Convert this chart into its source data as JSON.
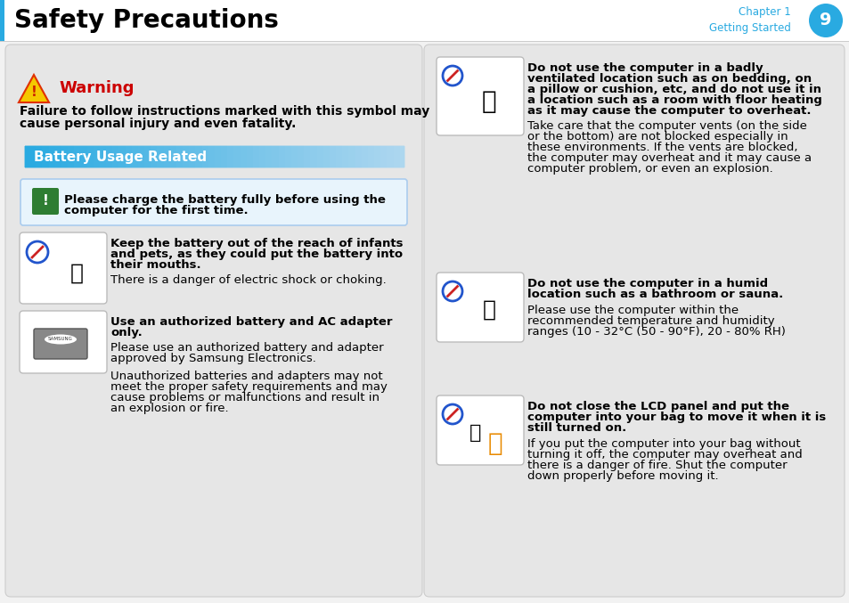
{
  "bg_color": "#f2f2f2",
  "header_bg": "#ffffff",
  "header_title": "Safety Precautions",
  "header_chapter": "Chapter 1",
  "header_getting_started": "Getting Started",
  "header_page": "9",
  "circle_color": "#29aae1",
  "warning_color": "#cc0000",
  "warning_text": "Warning",
  "warning_line1": "Failure to follow instructions marked with this symbol may",
  "warning_line2": "cause personal injury and even fatality.",
  "battery_header": "Battery Usage Related",
  "battery_bg": "#29aae1",
  "info_icon_bg": "#2e7d32",
  "info_text_line1": "Please charge the battery fully before using the",
  "info_text_line2": "computer for the first time.",
  "left_panel_bg": "#e6e6e6",
  "right_panel_bg": "#e6e6e6",
  "item1_bold1": "Keep the battery out of the reach of infants",
  "item1_bold2": "and pets, as they could put the battery into",
  "item1_bold3": "their mouths.",
  "item1_normal": "There is a danger of electric shock or choking.",
  "item2_bold1": "Use an authorized battery and AC adapter",
  "item2_bold2": "only.",
  "item2_normal1": "Please use an authorized battery and adapter",
  "item2_normal2": "approved by Samsung Electronics.",
  "item2_normal3": "Unauthorized batteries and adapters may not",
  "item2_normal4": "meet the proper safety requirements and may",
  "item2_normal5": "cause problems or malfunctions and result in",
  "item2_normal6": "an explosion or fire.",
  "r1_bold1": "Do not use the computer in a badly",
  "r1_bold2": "ventilated location such as on bedding, on",
  "r1_bold3": "a pillow or cushion, etc, and do not use it in",
  "r1_bold4": "a location such as a room with floor heating",
  "r1_bold5": "as it may cause the computer to overheat.",
  "r1_normal1": "Take care that the computer vents (on the side",
  "r1_normal2": "or the bottom) are not blocked especially in",
  "r1_normal3": "these environments. If the vents are blocked,",
  "r1_normal4": "the computer may overheat and it may cause a",
  "r1_normal5": "computer problem, or even an explosion.",
  "r2_bold1": "Do not use the computer in a humid",
  "r2_bold2": "location such as a bathroom or sauna.",
  "r2_normal1": "Please use the computer within the",
  "r2_normal2": "recommended temperature and humidity",
  "r2_normal3": "ranges (10 - 32°C (50 - 90°F), 20 - 80% RH)",
  "r3_bold1": "Do not close the LCD panel and put the",
  "r3_bold2": "computer into your bag to move it when it is",
  "r3_bold3": "still turned on.",
  "r3_normal1": "If you put the computer into your bag without",
  "r3_normal2": "turning it off, the computer may overheat and",
  "r3_normal3": "there is a danger of fire. Shut the computer",
  "r3_normal4": "down properly before moving it."
}
